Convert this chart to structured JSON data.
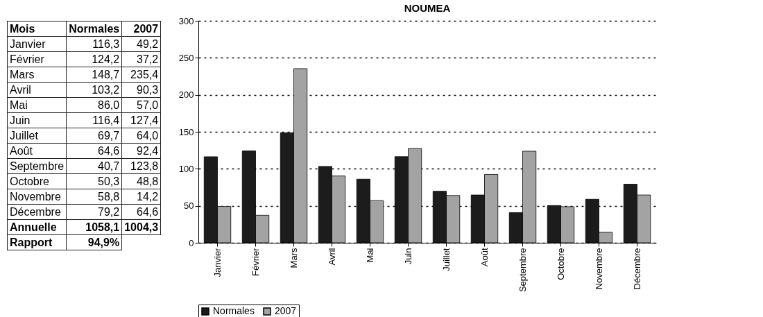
{
  "chart_data": {
    "type": "bar",
    "title": "NOUMEA",
    "categories": [
      "Janvier",
      "Février",
      "Mars",
      "Avril",
      "Mai",
      "Juin",
      "Juillet",
      "Août",
      "Septembre",
      "Octobre",
      "Novembre",
      "Décembre"
    ],
    "series": [
      {
        "name": "Normales",
        "color": "#1c1c1c",
        "values": [
          116.3,
          124.2,
          148.7,
          103.2,
          86.0,
          116.4,
          69.7,
          64.6,
          40.7,
          50.3,
          58.8,
          79.2
        ]
      },
      {
        "name": "2007",
        "color": "#a3a3a3",
        "values": [
          49.2,
          37.2,
          235.4,
          90.3,
          57.0,
          127.4,
          64.0,
          92.4,
          123.8,
          48.8,
          14.2,
          64.6
        ]
      }
    ],
    "ylim": [
      0,
      300
    ],
    "yticks": [
      0,
      50,
      100,
      150,
      200,
      250,
      300
    ],
    "grid": "y",
    "legend": "bottom",
    "annotations": [
      "Mois",
      "116,3",
      "49,2",
      "124,2",
      "37,2",
      "148,7",
      "235,4",
      "103,2",
      "90,3",
      "86,0",
      "57,0",
      "116,4",
      "127,4",
      "69,7",
      "64,0",
      "64,6",
      "92,4",
      "40,7",
      "123,8",
      "50,3",
      "48,8",
      "58,8",
      "14,2",
      "79,2",
      "64,6",
      "Annuelle",
      "1058,1",
      "1004,3",
      "Rapport",
      "94,9%"
    ]
  }
}
